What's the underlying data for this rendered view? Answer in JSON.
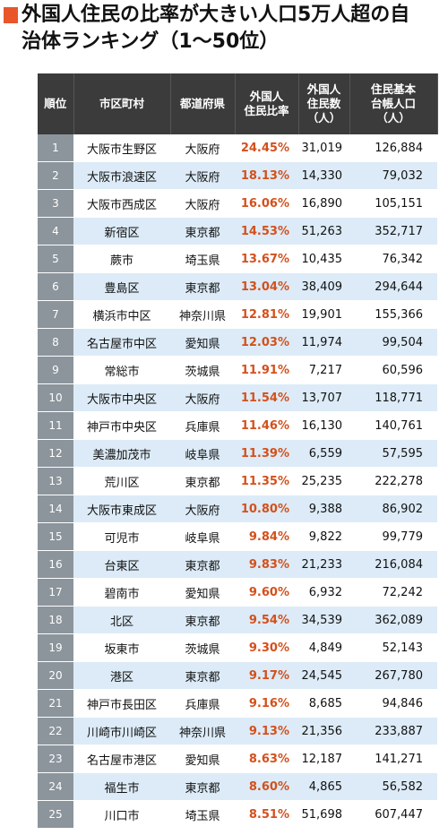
{
  "title": "外国人住民の比率が大きい人口5万人超の自治体ランキング（1〜50位）",
  "table": {
    "header": [
      "順位",
      "市区町村",
      "都道府県",
      "外国人\n住民比率",
      "外国人\n住民数\n（人）",
      "住民基本\n台帳人口\n（人）"
    ],
    "rows": [
      [
        "1",
        "大阪市生野区",
        "大阪府",
        "24.45%",
        "31,019",
        "126,884"
      ],
      [
        "2",
        "大阪市浪速区",
        "大阪府",
        "18.13%",
        "14,330",
        "79,032"
      ],
      [
        "3",
        "大阪市西成区",
        "大阪府",
        "16.06%",
        "16,890",
        "105,151"
      ],
      [
        "4",
        "新宿区",
        "東京都",
        "14.53%",
        "51,263",
        "352,717"
      ],
      [
        "5",
        "蕨市",
        "埼玉県",
        "13.67%",
        "10,435",
        "76,342"
      ],
      [
        "6",
        "豊島区",
        "東京都",
        "13.04%",
        "38,409",
        "294,644"
      ],
      [
        "7",
        "横浜市中区",
        "神奈川県",
        "12.81%",
        "19,901",
        "155,366"
      ],
      [
        "8",
        "名古屋市中区",
        "愛知県",
        "12.03%",
        "11,974",
        "99,504"
      ],
      [
        "9",
        "常総市",
        "茨城県",
        "11.91%",
        "7,217",
        "60,596"
      ],
      [
        "10",
        "大阪市中央区",
        "大阪府",
        "11.54%",
        "13,707",
        "118,771"
      ],
      [
        "11",
        "神戸市中央区",
        "兵庫県",
        "11.46%",
        "16,130",
        "140,761"
      ],
      [
        "12",
        "美濃加茂市",
        "岐阜県",
        "11.39%",
        "6,559",
        "57,595"
      ],
      [
        "13",
        "荒川区",
        "東京都",
        "11.35%",
        "25,235",
        "222,278"
      ],
      [
        "14",
        "大阪市東成区",
        "大阪府",
        "10.80%",
        "9,388",
        "86,902"
      ],
      [
        "15",
        "可児市",
        "岐阜県",
        "9.84%",
        "9,822",
        "99,779"
      ],
      [
        "16",
        "台東区",
        "東京都",
        "9.83%",
        "21,233",
        "216,084"
      ],
      [
        "17",
        "碧南市",
        "愛知県",
        "9.60%",
        "6,932",
        "72,242"
      ],
      [
        "18",
        "北区",
        "東京都",
        "9.54%",
        "34,539",
        "362,089"
      ],
      [
        "19",
        "坂東市",
        "茨城県",
        "9.30%",
        "4,849",
        "52,143"
      ],
      [
        "20",
        "港区",
        "東京都",
        "9.17%",
        "24,545",
        "267,780"
      ],
      [
        "21",
        "神戸市長田区",
        "兵庫県",
        "9.16%",
        "8,685",
        "94,846"
      ],
      [
        "22",
        "川崎市川崎区",
        "神奈川県",
        "9.13%",
        "21,356",
        "233,887"
      ],
      [
        "23",
        "名古屋市港区",
        "愛知県",
        "8.63%",
        "12,187",
        "141,271"
      ],
      [
        "24",
        "福生市",
        "東京都",
        "8.60%",
        "4,865",
        "56,582"
      ],
      [
        "25",
        "川口市",
        "埼玉県",
        "8.51%",
        "51,698",
        "607,447"
      ]
    ]
  }
}
